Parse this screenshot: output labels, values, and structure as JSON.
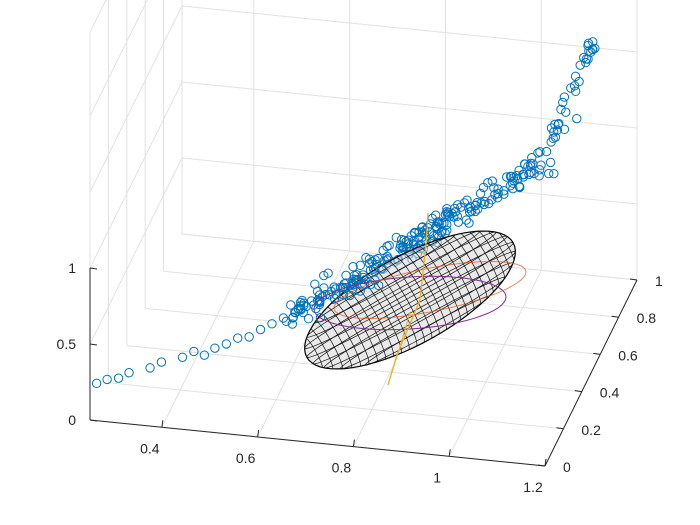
{
  "chart_data": {
    "type": "scatter",
    "projection": "3d",
    "title": "",
    "xlabel": "",
    "ylabel": "",
    "zlabel": "",
    "xlim": [
      0.25,
      1.2
    ],
    "ylim": [
      0,
      1
    ],
    "zlim": [
      0,
      1
    ],
    "x_ticks": [
      "0.4",
      "0.6",
      "0.8",
      "1",
      "1.2"
    ],
    "y_ticks": [
      "0",
      "0.2",
      "0.4",
      "0.6",
      "0.8",
      "1"
    ],
    "z_ticks": [
      "0",
      "0.5",
      "1"
    ],
    "grid": true,
    "colors": {
      "points": "#0072BD",
      "ellipsoid_mesh": "#000000",
      "ellipsoid_fill": "#d8d8d8",
      "ellipse_purple": "#7E2F8E",
      "axis_orange": "#EDB120",
      "ellipse_red": "#D95319"
    },
    "series": [
      {
        "marker": "circle",
        "note_points": [
          [
            0.26,
            0.02,
            0.22
          ],
          [
            0.28,
            0.03,
            0.24
          ],
          [
            0.3,
            0.05,
            0.23
          ],
          [
            0.32,
            0.06,
            0.26
          ],
          [
            0.36,
            0.08,
            0.28
          ],
          [
            0.38,
            0.1,
            0.3
          ],
          [
            0.42,
            0.12,
            0.32
          ],
          [
            0.44,
            0.14,
            0.34
          ],
          [
            0.46,
            0.15,
            0.31
          ],
          [
            0.48,
            0.16,
            0.35
          ],
          [
            0.5,
            0.18,
            0.36
          ],
          [
            0.52,
            0.2,
            0.38
          ],
          [
            0.54,
            0.22,
            0.37
          ],
          [
            0.56,
            0.24,
            0.4
          ],
          [
            0.58,
            0.26,
            0.42
          ],
          [
            0.6,
            0.28,
            0.44
          ],
          [
            0.62,
            0.3,
            0.46
          ],
          [
            0.64,
            0.32,
            0.48
          ],
          [
            0.66,
            0.34,
            0.5
          ],
          [
            0.68,
            0.36,
            0.52
          ],
          [
            0.7,
            0.38,
            0.55
          ],
          [
            0.72,
            0.4,
            0.56
          ],
          [
            0.74,
            0.42,
            0.58
          ],
          [
            0.76,
            0.44,
            0.6
          ],
          [
            0.78,
            0.46,
            0.62
          ],
          [
            0.8,
            0.48,
            0.64
          ],
          [
            0.82,
            0.5,
            0.66
          ],
          [
            0.84,
            0.52,
            0.68
          ],
          [
            0.86,
            0.55,
            0.7
          ],
          [
            0.88,
            0.58,
            0.72
          ],
          [
            0.9,
            0.62,
            0.75
          ],
          [
            0.92,
            0.66,
            0.78
          ],
          [
            0.94,
            0.7,
            0.8
          ],
          [
            0.96,
            0.74,
            0.84
          ],
          [
            0.98,
            0.78,
            0.88
          ],
          [
            1.0,
            0.82,
            0.92
          ],
          [
            1.02,
            0.86,
            0.95
          ],
          [
            1.04,
            0.9,
            0.98
          ],
          [
            1.06,
            0.94,
            1.02
          ],
          [
            1.08,
            0.97,
            1.06
          ]
        ]
      }
    ]
  }
}
